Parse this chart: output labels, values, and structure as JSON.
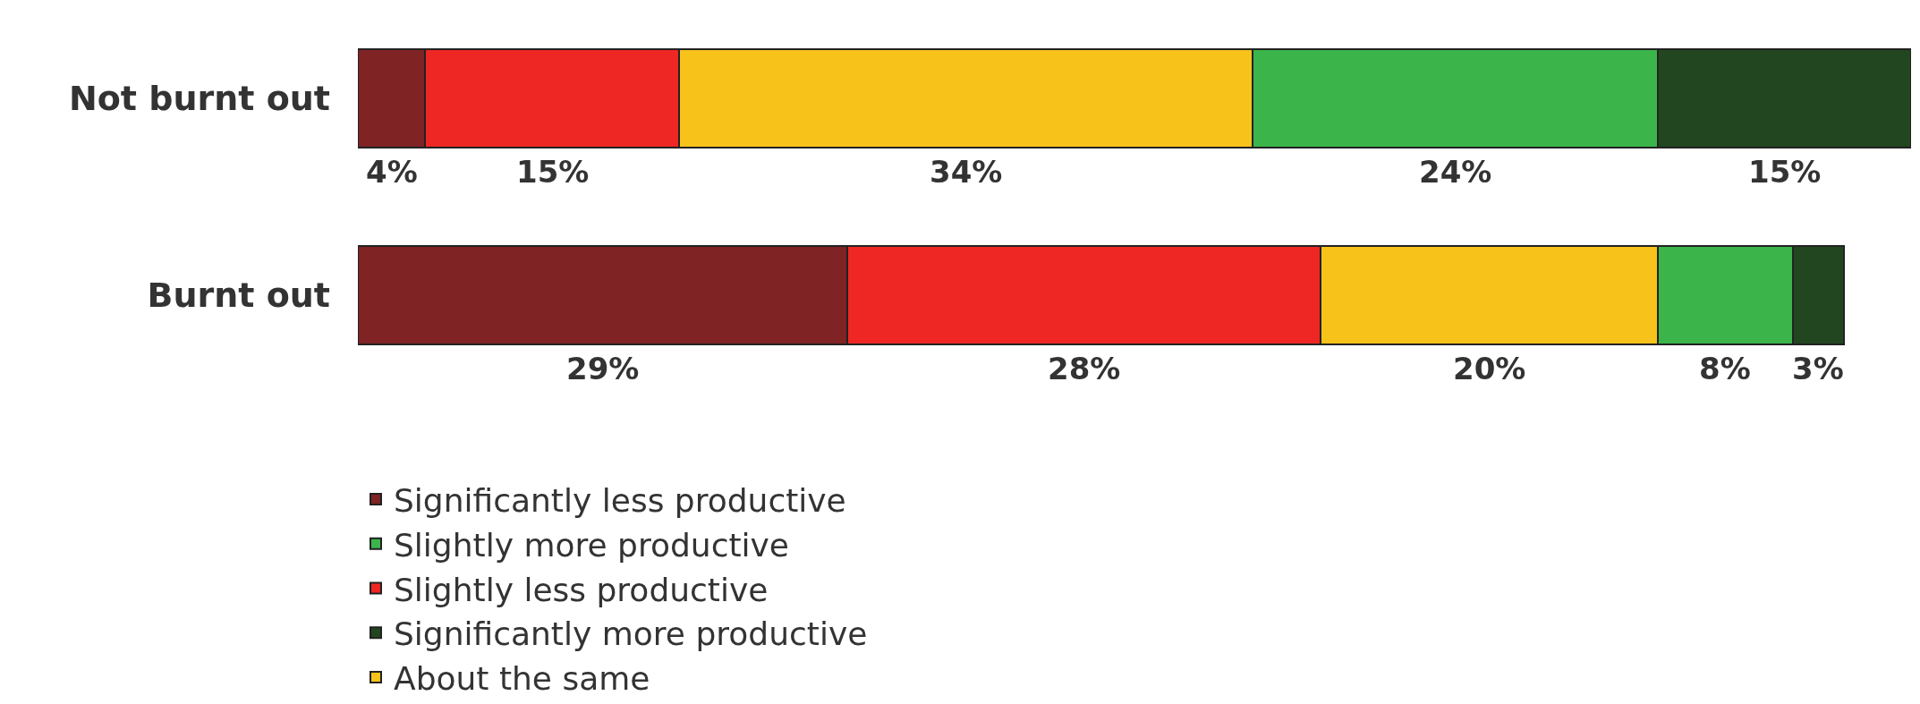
{
  "chart_data": {
    "type": "bar",
    "orientation": "horizontal",
    "stacked": true,
    "legend": "bottom",
    "categories": [
      "Not burnt out",
      "Burnt out"
    ],
    "series": [
      {
        "name": "Significantly less productive",
        "color": "#7f2324",
        "values": [
          4,
          29
        ],
        "value_labels": [
          "4%",
          "29%"
        ]
      },
      {
        "name": "Slightly less productive",
        "color": "#ee2724",
        "values": [
          15,
          28
        ],
        "value_labels": [
          "15%",
          "28%"
        ]
      },
      {
        "name": "About the same",
        "color": "#f7c21a",
        "values": [
          34,
          20
        ],
        "value_labels": [
          "34%",
          "20%"
        ]
      },
      {
        "name": "Slightly more productive",
        "color": "#3bb54a",
        "values": [
          24,
          8
        ],
        "value_labels": [
          "24%",
          "8%"
        ]
      },
      {
        "name": "Significantly more productive",
        "color": "#22461f",
        "values": [
          15,
          3
        ],
        "value_labels": [
          "15%",
          "3%"
        ]
      }
    ]
  }
}
